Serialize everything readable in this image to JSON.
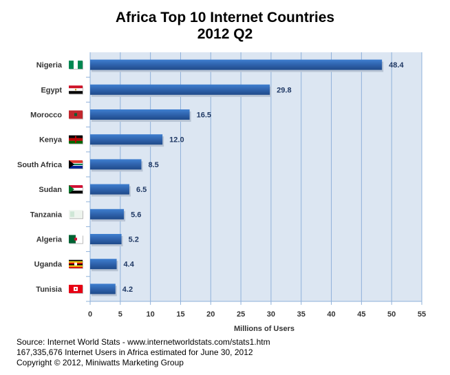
{
  "chart_data": {
    "type": "bar",
    "orientation": "horizontal",
    "title": "Africa Top 10 Internet Countries",
    "subtitle": "2012 Q2",
    "xlabel": "Millions of Users",
    "ylabel": "",
    "xlim": [
      0,
      55
    ],
    "xticks": [
      0,
      5,
      10,
      15,
      20,
      25,
      30,
      35,
      40,
      45,
      50,
      55
    ],
    "grid": true,
    "categories": [
      "Nigeria",
      "Egypt",
      "Morocco",
      "Kenya",
      "South Africa",
      "Sudan",
      "Tanzania",
      "Algeria",
      "Uganda",
      "Tunisia"
    ],
    "values": [
      48.4,
      29.8,
      16.5,
      12.0,
      8.5,
      6.5,
      5.6,
      5.2,
      4.4,
      4.2
    ],
    "value_labels": [
      "48.4",
      "29.8",
      "16.5",
      "12.0",
      "8.5",
      "6.5",
      "5.6",
      "5.2",
      "4.4",
      "4.2"
    ],
    "flag_icons": [
      "nigeria-flag",
      "egypt-flag",
      "morocco-flag",
      "kenya-flag",
      "south-africa-flag",
      "sudan-flag",
      "tanzania-flag",
      "algeria-flag",
      "uganda-flag",
      "tunisia-flag"
    ],
    "colors": {
      "bar": "#2f63ad",
      "plot_bg": "#dce6f2",
      "grid": "#8eb0da"
    }
  },
  "footer": {
    "source": "Source: Internet World Stats - www.internetworldstats.com/stats1.htm",
    "estimate": "167,335,676 Internet Users in Africa estimated for June 30, 2012",
    "copyright": "Copyright © 2012, Miniwatts Marketing Group"
  }
}
